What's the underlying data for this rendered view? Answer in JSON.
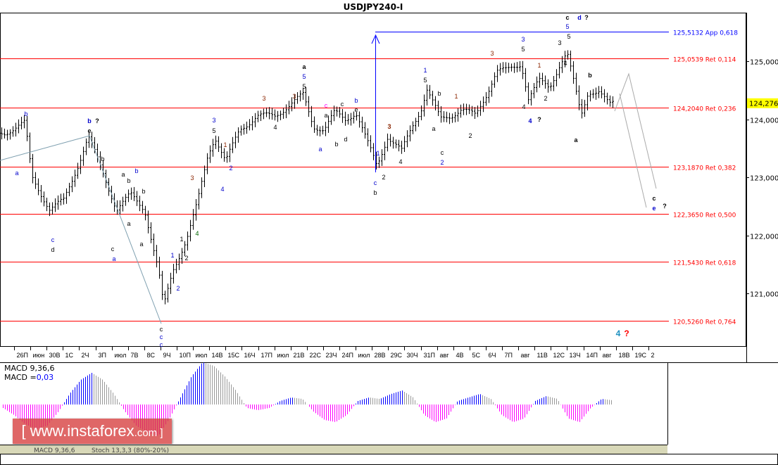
{
  "chart_data": {
    "type": "bar",
    "title": "USDJPY240-I",
    "current_price": "124,276",
    "price_axis": {
      "ticks": [
        "125,000",
        "124,000",
        "123,000",
        "122,000",
        "121,000"
      ],
      "tick_values": [
        125,
        124,
        123,
        122,
        121
      ],
      "range": [
        120.1,
        125.9
      ]
    },
    "date_axis": [
      "26П",
      "июн",
      "30В",
      "1С",
      "2Ч",
      "3П",
      "июл",
      "7В",
      "8С",
      "9Ч",
      "10П",
      "июл",
      "14В",
      "15С",
      "16Ч",
      "17П",
      "июл",
      "21В",
      "22С",
      "23Ч",
      "24П",
      "июл",
      "28В",
      "29С",
      "30Ч",
      "31П",
      "авг",
      "4В",
      "5С",
      "6Ч",
      "7П",
      "авг",
      "11В",
      "12С",
      "13Ч",
      "14П",
      "авг",
      "18В",
      "19С",
      "2"
    ],
    "close_path": [
      123.76,
      123.94,
      123.0,
      122.45,
      122.6,
      123.2,
      123.7,
      123.1,
      122.45,
      122.7,
      122.45,
      121.36,
      120.76,
      121.4,
      121.95,
      122.56,
      123.4,
      123.7,
      123.27,
      123.82,
      124.06,
      124.06,
      124.24,
      124.42,
      123.88,
      123.82,
      124.12,
      124.0,
      124.12,
      123.64,
      123.2,
      123.7,
      123.45,
      123.88,
      124.24,
      124.54,
      124.0,
      124.06,
      124.18,
      124.06,
      124.42,
      124.84,
      124.84,
      124.96,
      124.36,
      124.66,
      124.54,
      124.96,
      125.15,
      124.6,
      124.06,
      124.48,
      124.48,
      124.24,
      124.276
    ],
    "levels": [
      {
        "value": 125.5132,
        "label": "125,5132 App 0,618",
        "color": "#0000ff"
      },
      {
        "value": 125.0539,
        "label": "125,0539 Ret 0,114",
        "color": "#ff0000"
      },
      {
        "value": 124.204,
        "label": "124,2040 Ret 0,236",
        "color": "#ff0000"
      },
      {
        "value": 123.187,
        "label": "123,1870 Ret 0,382",
        "color": "#ff0000"
      },
      {
        "value": 122.365,
        "label": "122,3650 Ret 0,500",
        "color": "#ff0000"
      },
      {
        "value": 121.543,
        "label": "121,5430 Ret 0,618",
        "color": "#ff0000"
      },
      {
        "value": 120.526,
        "label": "120,5260 Ret 0,764",
        "color": "#ff0000"
      }
    ],
    "wave_labels": [
      "b",
      "a",
      "b",
      "?",
      "e",
      "b",
      "a",
      "b",
      "b",
      "b",
      "c",
      "a",
      "c",
      "d",
      "a",
      "a",
      "1",
      "2",
      "1",
      "2",
      "3",
      "4",
      "c",
      "c",
      "c",
      "3",
      "5",
      "1",
      "2",
      "4",
      "3",
      "4",
      "a",
      "5",
      "5",
      "3",
      "c",
      "a",
      "a",
      "b",
      "d",
      "c",
      "b",
      "e",
      "1",
      "2",
      "c",
      "b",
      "3",
      "4",
      "1",
      "5",
      "c",
      "2",
      "a",
      "b",
      "1",
      "2",
      "3",
      "3",
      "5",
      "4",
      "4",
      "?",
      "1",
      "2",
      "3",
      "4",
      "5",
      "c",
      "5",
      "d",
      "?",
      "b",
      "a",
      "c",
      "e",
      "?",
      "4",
      "?"
    ],
    "macd": {
      "label": "MACD 9,36,6",
      "value_label": "MACD =",
      "value": "0,03",
      "histogram": [
        -5,
        -15,
        -28,
        -35,
        -30,
        -10,
        15,
        35,
        45,
        35,
        15,
        -10,
        -30,
        -40,
        -45,
        -20,
        10,
        40,
        60,
        55,
        40,
        20,
        -5,
        -8,
        -5,
        5,
        10,
        8,
        -10,
        -22,
        -25,
        -15,
        5,
        10,
        8,
        15,
        20,
        10,
        -15,
        -25,
        -20,
        5,
        10,
        15,
        8,
        -15,
        -25,
        -20,
        5,
        12,
        8,
        -20,
        -25,
        -5,
        8,
        6
      ],
      "colors": {
        "up": "#0000ff",
        "down": "#999999",
        "negative": "#ff00ff"
      }
    },
    "tabs": [
      "MACD 9,36,6",
      "Stoch 13,3,3 (80%-20%)"
    ],
    "colors": {
      "bars": "#000000",
      "fib": "#ff0000",
      "target": "#0000ff",
      "price_tag": "#ffff00"
    }
  },
  "watermark": {
    "text": "[ www.instaforex",
    "suffix": ".com ]"
  }
}
